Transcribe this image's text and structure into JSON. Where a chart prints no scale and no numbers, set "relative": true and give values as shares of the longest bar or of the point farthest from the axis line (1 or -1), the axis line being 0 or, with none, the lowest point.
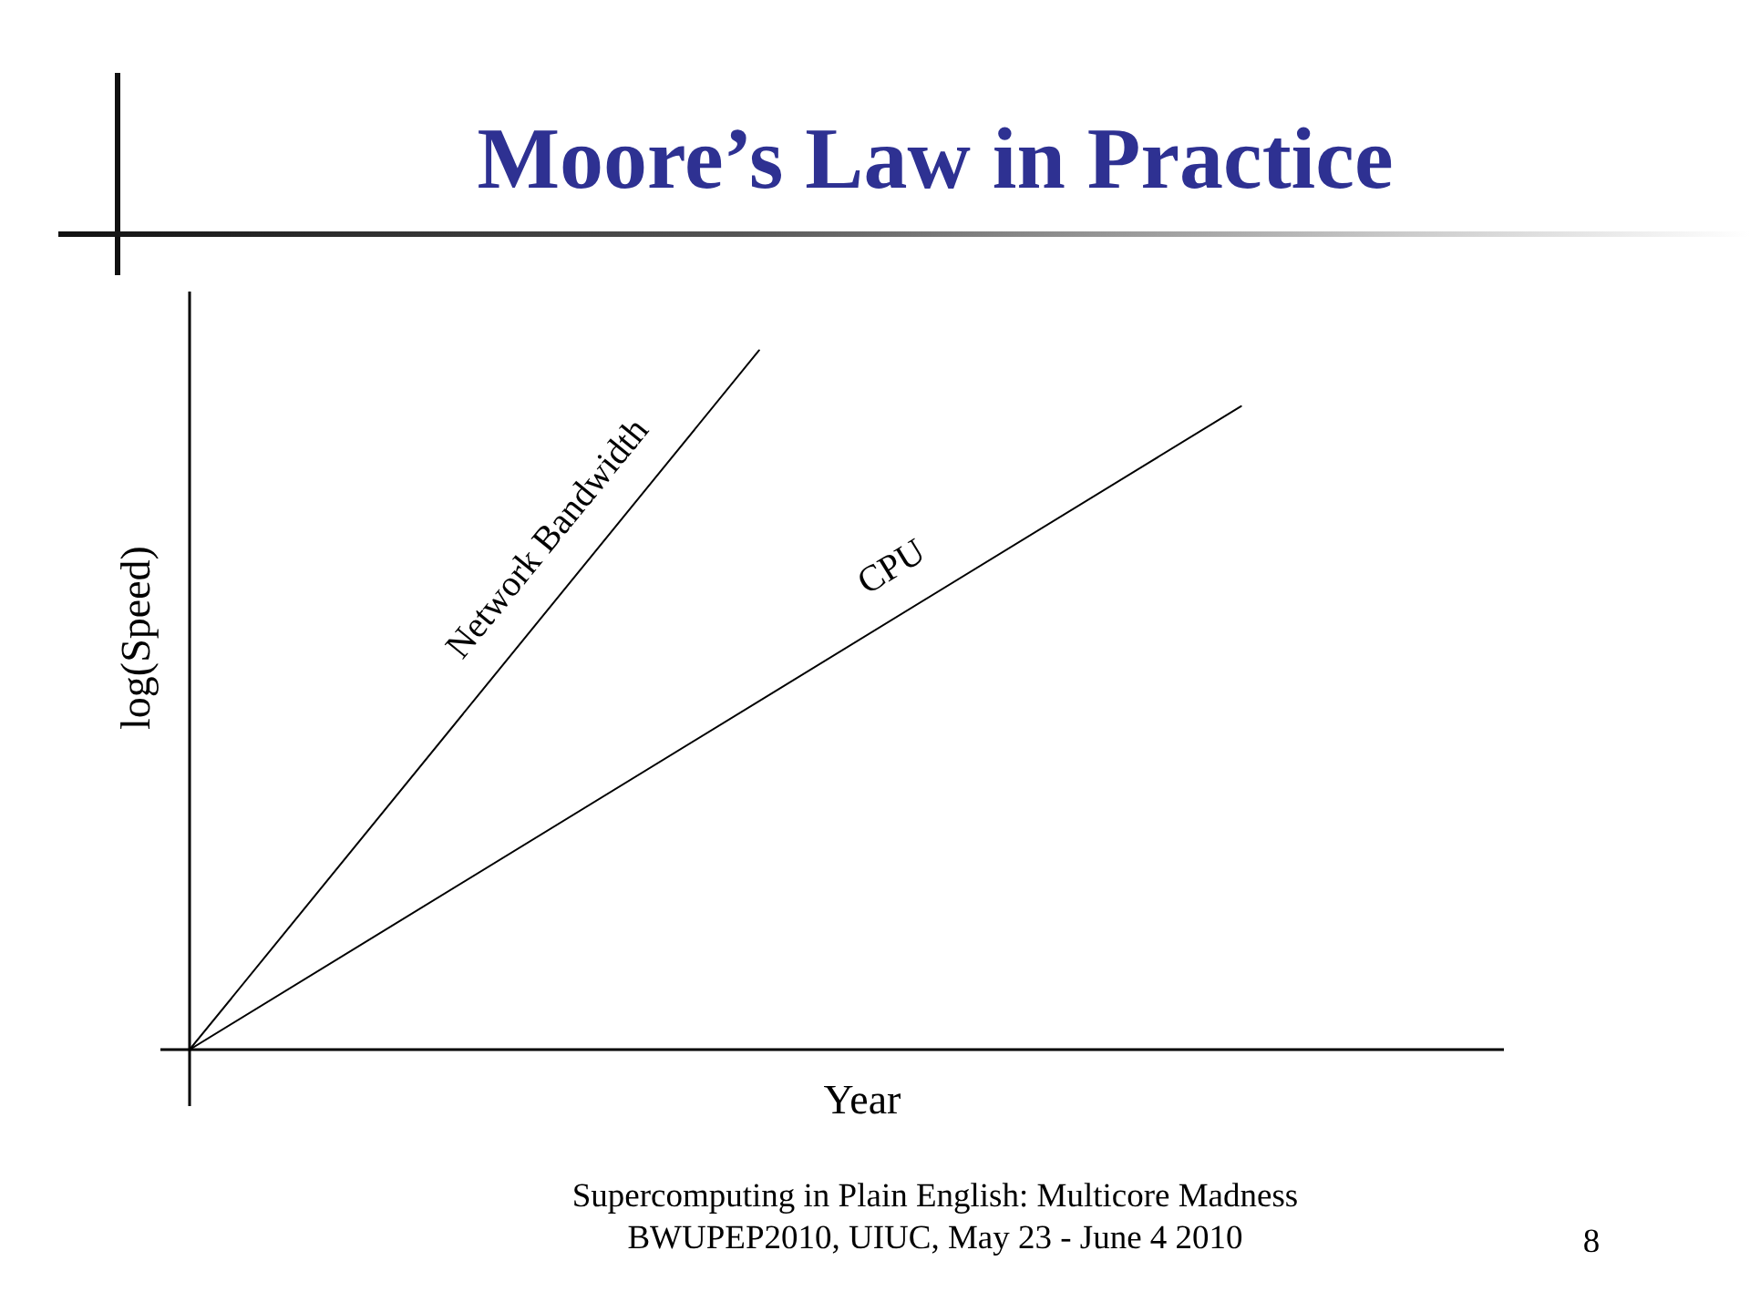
{
  "chart_data": {
    "type": "line",
    "title": "Moore’s Law in Practice",
    "xlabel": "Year",
    "ylabel": "log(Speed)",
    "relative": true,
    "marker": "none",
    "line_style": "solid",
    "categories": [
      null,
      null,
      null,
      null,
      null,
      null,
      null,
      null,
      null,
      null,
      null,
      null,
      null,
      null,
      null,
      null,
      null,
      null,
      null,
      null,
      null,
      null,
      null,
      null,
      null,
      null,
      null,
      null,
      null,
      null,
      null
    ],
    "series": [
      {
        "name": "Network Bandwidth",
        "color": "#000000",
        "values": [
          0,
          null,
          null,
          null,
          null,
          null,
          null,
          null,
          null,
          null,
          null,
          null,
          null,
          1,
          null,
          null,
          null,
          null,
          null,
          null,
          null,
          null,
          null,
          null,
          null,
          null,
          null,
          null,
          null,
          null,
          null
        ]
      },
      {
        "name": "CPU",
        "color": "#000000",
        "values": [
          0,
          null,
          null,
          null,
          null,
          null,
          null,
          null,
          null,
          null,
          null,
          null,
          null,
          null,
          null,
          null,
          null,
          null,
          null,
          null,
          null,
          null,
          null,
          null,
          0.92,
          null,
          null,
          null,
          null,
          null,
          null
        ]
      }
    ],
    "annotations": [
      "Supercomputing in Plain English: Multicore Madness",
      "BWUPEP2010, UIUC, May 23 - June 4 2010",
      "8"
    ]
  }
}
